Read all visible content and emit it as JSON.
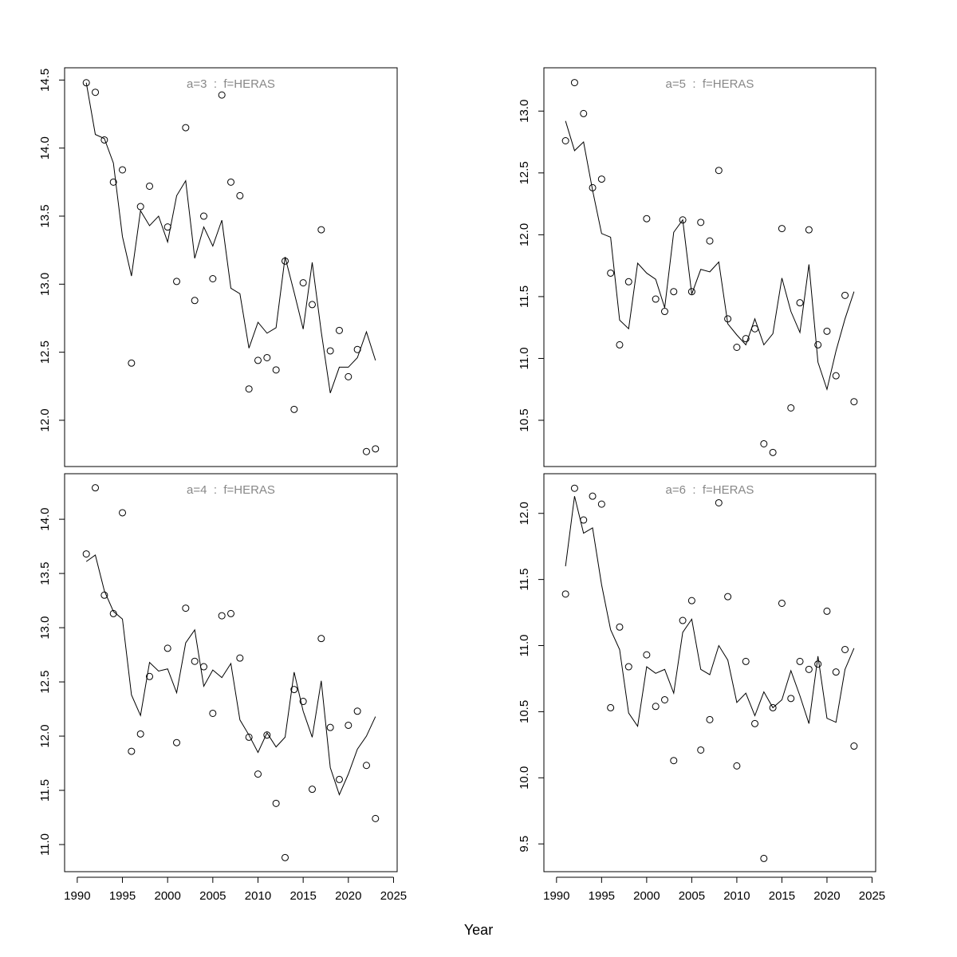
{
  "xlabel": "Year",
  "chart_data": [
    {
      "type": "scatter",
      "title": "a=3  :  f=HERAS",
      "x": [
        1991,
        1992,
        1993,
        1994,
        1995,
        1996,
        1997,
        1998,
        1999,
        2000,
        2001,
        2002,
        2003,
        2004,
        2005,
        2006,
        2007,
        2008,
        2009,
        2010,
        2011,
        2012,
        2013,
        2014,
        2015,
        2016,
        2017,
        2018,
        2019,
        2020,
        2021,
        2022,
        2023
      ],
      "xlim": [
        1988.6,
        2025.4
      ],
      "ylim": [
        11.66,
        14.59
      ],
      "yticks": [
        {
          "value": 12,
          "label": "12.0"
        },
        {
          "value": 12.5,
          "label": "12.5"
        },
        {
          "value": 13,
          "label": "13.0"
        },
        {
          "value": 13.5,
          "label": "13.5"
        },
        {
          "value": 14,
          "label": "14.0"
        },
        {
          "value": 14.5,
          "label": "14.5"
        }
      ],
      "series": [
        {
          "style": "points",
          "color": "#000000",
          "values": [
            14.48,
            14.41,
            14.06,
            13.75,
            13.84,
            12.42,
            13.57,
            13.72,
            null,
            13.42,
            13.02,
            14.15,
            12.88,
            13.5,
            13.04,
            14.39,
            13.75,
            13.65,
            12.23,
            12.44,
            12.46,
            12.37,
            13.17,
            12.08,
            13.01,
            12.85,
            13.4,
            12.51,
            12.66,
            12.32,
            12.52,
            11.77,
            11.79
          ]
        },
        {
          "style": "line",
          "color": "#000000",
          "values": [
            14.48,
            14.1,
            14.07,
            13.89,
            13.35,
            13.06,
            13.54,
            13.43,
            13.5,
            13.31,
            13.65,
            13.76,
            13.19,
            13.42,
            13.28,
            13.47,
            12.97,
            12.93,
            12.53,
            12.72,
            12.64,
            12.68,
            13.2,
            12.94,
            12.67,
            13.16,
            12.65,
            12.2,
            12.39,
            12.39,
            12.46,
            12.65,
            12.44
          ]
        }
      ]
    },
    {
      "type": "scatter",
      "title": "a=5  :  f=HERAS",
      "x": [
        1991,
        1992,
        1993,
        1994,
        1995,
        1996,
        1997,
        1998,
        1999,
        2000,
        2001,
        2002,
        2003,
        2004,
        2005,
        2006,
        2007,
        2008,
        2009,
        2010,
        2011,
        2012,
        2013,
        2014,
        2015,
        2016,
        2017,
        2018,
        2019,
        2020,
        2021,
        2022,
        2023
      ],
      "xlim": [
        1988.6,
        2025.4
      ],
      "ylim": [
        10.126,
        13.35
      ],
      "yticks": [
        {
          "value": 10.5,
          "label": "10.5"
        },
        {
          "value": 11,
          "label": "11.0"
        },
        {
          "value": 11.5,
          "label": "11.5"
        },
        {
          "value": 12,
          "label": "12.0"
        },
        {
          "value": 12.5,
          "label": "12.5"
        },
        {
          "value": 13,
          "label": "13.0"
        }
      ],
      "series": [
        {
          "style": "points",
          "color": "#000000",
          "values": [
            12.76,
            13.23,
            12.98,
            12.38,
            12.45,
            11.69,
            11.11,
            11.62,
            null,
            12.13,
            11.48,
            11.38,
            11.54,
            12.12,
            11.54,
            12.1,
            11.95,
            12.52,
            11.32,
            11.09,
            11.16,
            11.24,
            10.31,
            10.24,
            12.05,
            10.6,
            11.45,
            12.04,
            11.11,
            11.22,
            10.86,
            11.51,
            10.65
          ]
        },
        {
          "style": "line",
          "color": "#000000",
          "values": [
            12.92,
            12.68,
            12.75,
            12.36,
            12.01,
            11.98,
            11.31,
            11.24,
            11.77,
            11.69,
            11.64,
            11.41,
            12.02,
            12.12,
            11.52,
            11.72,
            11.7,
            11.78,
            11.28,
            11.19,
            11.11,
            11.32,
            11.11,
            11.2,
            11.65,
            11.38,
            11.21,
            11.76,
            10.97,
            10.75,
            11.06,
            11.32,
            11.54
          ]
        }
      ]
    },
    {
      "type": "scatter",
      "title": "a=4  :  f=HERAS",
      "x": [
        1991,
        1992,
        1993,
        1994,
        1995,
        1996,
        1997,
        1998,
        1999,
        2000,
        2001,
        2002,
        2003,
        2004,
        2005,
        2006,
        2007,
        2008,
        2009,
        2010,
        2011,
        2012,
        2013,
        2014,
        2015,
        2016,
        2017,
        2018,
        2019,
        2020,
        2021,
        2022,
        2023
      ],
      "xlim": [
        1988.6,
        2025.4
      ],
      "xticks": [
        1990,
        1995,
        2000,
        2005,
        2010,
        2015,
        2020,
        2025
      ],
      "ylim": [
        10.75,
        14.42
      ],
      "yticks": [
        {
          "value": 11,
          "label": "11.0"
        },
        {
          "value": 11.5,
          "label": "11.5"
        },
        {
          "value": 12,
          "label": "12.0"
        },
        {
          "value": 12.5,
          "label": "12.5"
        },
        {
          "value": 13,
          "label": "13.0"
        },
        {
          "value": 13.5,
          "label": "13.5"
        },
        {
          "value": 14,
          "label": "14.0"
        }
      ],
      "series": [
        {
          "style": "points",
          "color": "#000000",
          "values": [
            13.68,
            14.29,
            13.3,
            13.13,
            14.06,
            11.86,
            12.02,
            12.55,
            null,
            12.81,
            11.94,
            13.18,
            12.69,
            12.64,
            12.21,
            13.11,
            13.13,
            12.72,
            11.99,
            11.65,
            12.01,
            11.38,
            10.88,
            12.43,
            12.32,
            11.51,
            12.9,
            12.08,
            11.6,
            12.1,
            12.23,
            11.73,
            11.24
          ]
        },
        {
          "style": "line",
          "color": "#000000",
          "values": [
            13.61,
            13.67,
            13.34,
            13.15,
            13.08,
            12.38,
            12.19,
            12.68,
            12.6,
            12.62,
            12.4,
            12.86,
            12.98,
            12.46,
            12.61,
            12.54,
            12.67,
            12.15,
            12.01,
            11.85,
            12.03,
            11.9,
            11.99,
            12.59,
            12.23,
            11.99,
            12.51,
            11.71,
            11.46,
            11.65,
            11.88,
            12.0,
            12.18
          ]
        }
      ]
    },
    {
      "type": "scatter",
      "title": "a=6  :  f=HERAS",
      "x": [
        1991,
        1992,
        1993,
        1994,
        1995,
        1996,
        1997,
        1998,
        1999,
        2000,
        2001,
        2002,
        2003,
        2004,
        2005,
        2006,
        2007,
        2008,
        2009,
        2010,
        2011,
        2012,
        2013,
        2014,
        2015,
        2016,
        2017,
        2018,
        2019,
        2020,
        2021,
        2022,
        2023
      ],
      "xlim": [
        1988.6,
        2025.4
      ],
      "xticks": [
        1990,
        1995,
        2000,
        2005,
        2010,
        2015,
        2020,
        2025
      ],
      "ylim": [
        9.29,
        12.3
      ],
      "yticks": [
        {
          "value": 9.5,
          "label": "9.5"
        },
        {
          "value": 10,
          "label": "10.0"
        },
        {
          "value": 10.5,
          "label": "10.5"
        },
        {
          "value": 11,
          "label": "11.0"
        },
        {
          "value": 11.5,
          "label": "11.5"
        },
        {
          "value": 12,
          "label": "12.0"
        }
      ],
      "series": [
        {
          "style": "points",
          "color": "#000000",
          "values": [
            11.39,
            12.19,
            11.95,
            12.13,
            12.07,
            10.53,
            11.14,
            10.84,
            null,
            10.93,
            10.54,
            10.59,
            10.13,
            11.19,
            11.34,
            10.21,
            10.44,
            12.08,
            11.37,
            10.09,
            10.88,
            10.41,
            9.39,
            10.53,
            11.32,
            10.6,
            10.88,
            10.82,
            10.86,
            11.26,
            10.8,
            10.97,
            10.24
          ]
        },
        {
          "style": "line",
          "color": "#000000",
          "values": [
            11.6,
            12.13,
            11.85,
            11.89,
            11.46,
            11.12,
            10.97,
            10.49,
            10.39,
            10.84,
            10.79,
            10.82,
            10.64,
            11.1,
            11.2,
            10.82,
            10.78,
            11.0,
            10.89,
            10.57,
            10.64,
            10.47,
            10.65,
            10.53,
            10.59,
            10.81,
            10.62,
            10.41,
            10.92,
            10.45,
            10.42,
            10.82,
            10.98
          ]
        }
      ]
    }
  ]
}
